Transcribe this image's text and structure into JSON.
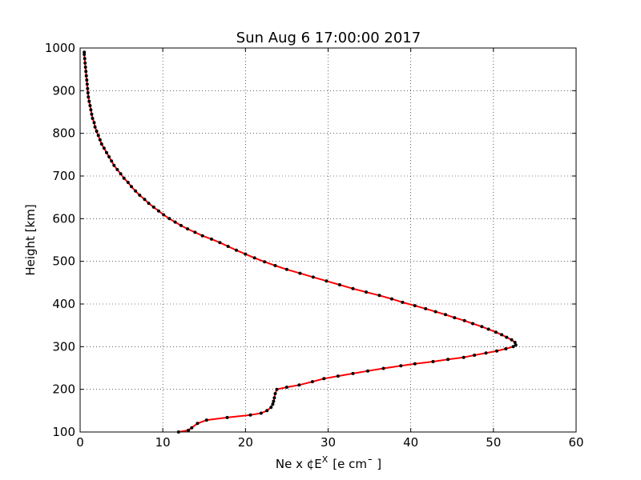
{
  "chart_data": {
    "type": "line",
    "title": "Sun Aug  6 17:00:00 2017",
    "xlabel": "Ne x ¢E",
    "xlabel_sup": "X",
    "xlabel_unit": "[e cm¯ ]",
    "ylabel": "Height [km]",
    "xlim": [
      0,
      60
    ],
    "ylim": [
      100,
      1000
    ],
    "x_ticks": [
      "0",
      "10",
      "20",
      "30",
      "40",
      "50",
      "60"
    ],
    "y_ticks": [
      "100",
      "200",
      "300",
      "400",
      "500",
      "600",
      "700",
      "800",
      "900",
      "1000"
    ],
    "grid": true,
    "line_color": "#ff0000",
    "marker_color": "#000000",
    "series": [
      {
        "points": [
          [
            11.9,
            100
          ],
          [
            13.1,
            104
          ],
          [
            13.5,
            110
          ],
          [
            14.2,
            120
          ],
          [
            15.3,
            128
          ],
          [
            17.8,
            134
          ],
          [
            20.6,
            140
          ],
          [
            21.9,
            144
          ],
          [
            22.6,
            150
          ],
          [
            23.1,
            158
          ],
          [
            23.3,
            165
          ],
          [
            23.4,
            172
          ],
          [
            23.5,
            180
          ],
          [
            23.6,
            190
          ],
          [
            23.8,
            200
          ],
          [
            25.0,
            205
          ],
          [
            26.5,
            210
          ],
          [
            28.1,
            218
          ],
          [
            29.5,
            225
          ],
          [
            31.2,
            231
          ],
          [
            33.0,
            237
          ],
          [
            34.8,
            243
          ],
          [
            36.7,
            249
          ],
          [
            38.8,
            255
          ],
          [
            40.5,
            260
          ],
          [
            42.7,
            265
          ],
          [
            44.5,
            270
          ],
          [
            46.4,
            275
          ],
          [
            47.7,
            280
          ],
          [
            49.1,
            285
          ],
          [
            50.4,
            290
          ],
          [
            51.5,
            295
          ],
          [
            52.4,
            300
          ],
          [
            52.7,
            304
          ],
          [
            52.6,
            310
          ],
          [
            52.2,
            316
          ],
          [
            51.6,
            322
          ],
          [
            51.0,
            328
          ],
          [
            50.3,
            334
          ],
          [
            49.4,
            341
          ],
          [
            48.6,
            347
          ],
          [
            47.5,
            354
          ],
          [
            46.5,
            361
          ],
          [
            45.3,
            368
          ],
          [
            44.2,
            375
          ],
          [
            43.0,
            382
          ],
          [
            41.8,
            389
          ],
          [
            40.5,
            396
          ],
          [
            39.0,
            404
          ],
          [
            37.7,
            412
          ],
          [
            36.2,
            420
          ],
          [
            34.6,
            428
          ],
          [
            33.0,
            436
          ],
          [
            31.4,
            445
          ],
          [
            29.8,
            454
          ],
          [
            28.2,
            463
          ],
          [
            26.6,
            472
          ],
          [
            25.0,
            481
          ],
          [
            23.6,
            490
          ],
          [
            22.3,
            499
          ],
          [
            21.1,
            508
          ],
          [
            20.0,
            517
          ],
          [
            18.9,
            526
          ],
          [
            17.9,
            535
          ],
          [
            16.9,
            544
          ],
          [
            15.9,
            552
          ],
          [
            14.8,
            560
          ],
          [
            13.9,
            568
          ],
          [
            13.0,
            576
          ],
          [
            12.2,
            584
          ],
          [
            11.5,
            592
          ],
          [
            10.8,
            600
          ],
          [
            10.1,
            609
          ],
          [
            9.5,
            618
          ],
          [
            8.9,
            627
          ],
          [
            8.3,
            636
          ],
          [
            7.8,
            645
          ],
          [
            7.2,
            655
          ],
          [
            6.7,
            665
          ],
          [
            6.2,
            675
          ],
          [
            5.8,
            685
          ],
          [
            5.3,
            695
          ],
          [
            4.9,
            705
          ],
          [
            4.5,
            715
          ],
          [
            4.1,
            725
          ],
          [
            3.8,
            735
          ],
          [
            3.5,
            745
          ],
          [
            3.2,
            755
          ],
          [
            2.9,
            765
          ],
          [
            2.6,
            775
          ],
          [
            2.4,
            785
          ],
          [
            2.2,
            795
          ],
          [
            2.0,
            805
          ],
          [
            1.8,
            815
          ],
          [
            1.7,
            825
          ],
          [
            1.5,
            835
          ],
          [
            1.4,
            845
          ],
          [
            1.3,
            855
          ],
          [
            1.2,
            865
          ],
          [
            1.1,
            875
          ],
          [
            1.0,
            885
          ],
          [
            0.95,
            895
          ],
          [
            0.9,
            905
          ],
          [
            0.85,
            915
          ],
          [
            0.8,
            925
          ],
          [
            0.75,
            935
          ],
          [
            0.7,
            945
          ],
          [
            0.65,
            955
          ],
          [
            0.6,
            965
          ],
          [
            0.55,
            975
          ],
          [
            0.5,
            985
          ],
          [
            0.5,
            990
          ]
        ]
      }
    ]
  }
}
